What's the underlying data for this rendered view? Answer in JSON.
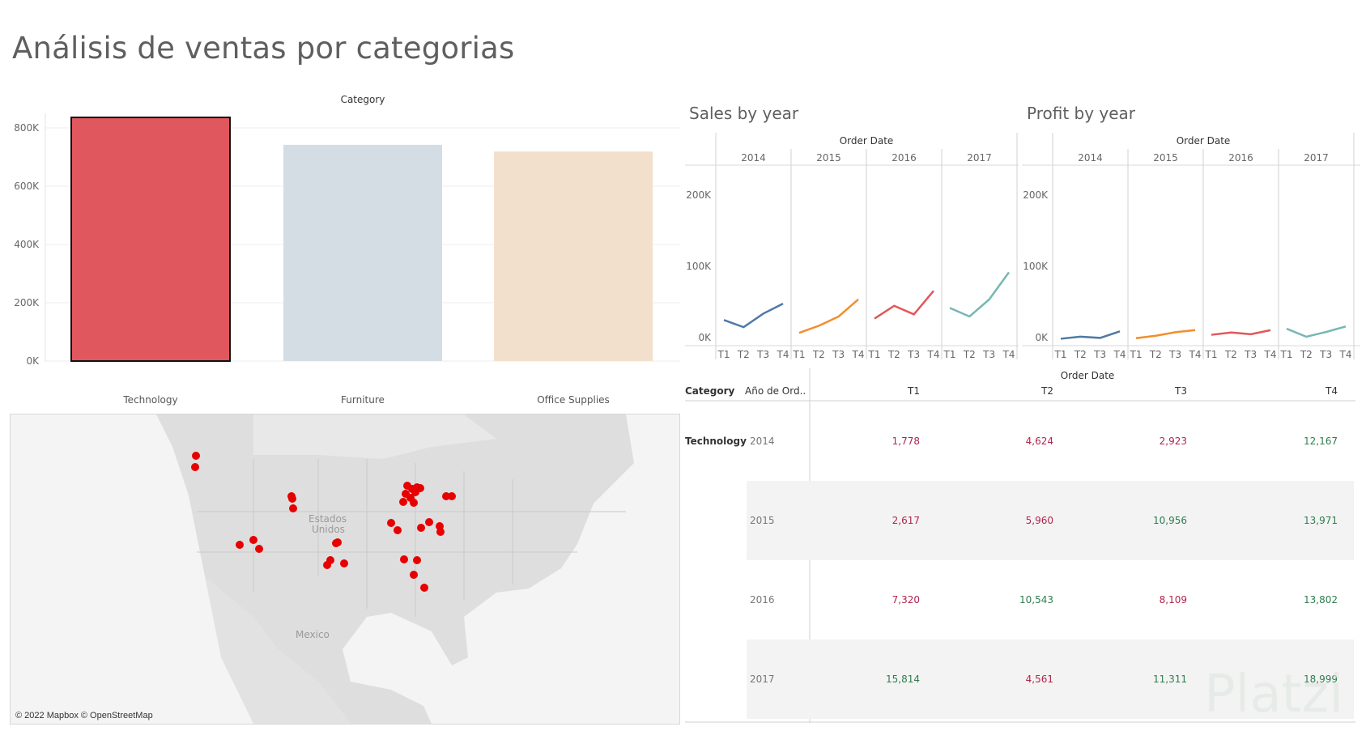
{
  "title": "Análisis de ventas por categorias",
  "colors": {
    "technology": "#e1575e",
    "furniture": "#d5dde4",
    "office": "#f2e0cd",
    "y2014": "#4e79a7",
    "y2015": "#f28e2b",
    "y2016": "#e15759",
    "y2017": "#76b7b2",
    "marker": "#e60000",
    "pos": "#2e7d4f",
    "neg": "#b0254d"
  },
  "chart_data": [
    {
      "type": "bar",
      "title": "Category",
      "categories": [
        "Technology",
        "Furniture",
        "Office Supplies"
      ],
      "values": [
        836000,
        742000,
        719000
      ],
      "ylim": [
        0,
        800000
      ],
      "yticks": [
        "0K",
        "200K",
        "400K",
        "600K",
        "800K"
      ],
      "ytick_values": [
        0,
        200000,
        400000,
        600000,
        800000
      ],
      "grid": true
    },
    {
      "type": "line",
      "title": "Sales by year",
      "xlabel": "Order Date",
      "years": [
        "2014",
        "2015",
        "2016",
        "2017"
      ],
      "quarters": [
        "T1",
        "T2",
        "T3",
        "T4"
      ],
      "ylim": [
        0,
        250000
      ],
      "yticks": [
        "0K",
        "100K",
        "200K"
      ],
      "ytick_values": [
        0,
        100000,
        200000
      ],
      "series": [
        {
          "values": [
            28000,
            18000,
            37000,
            51000
          ]
        },
        {
          "values": [
            10000,
            20000,
            33000,
            57000
          ]
        },
        {
          "values": [
            30000,
            48000,
            36000,
            69000
          ]
        },
        {
          "values": [
            45000,
            33000,
            57000,
            95000
          ]
        }
      ]
    },
    {
      "type": "line",
      "title": "Profit by year",
      "xlabel": "Order Date",
      "years": [
        "2014",
        "2015",
        "2016",
        "2017"
      ],
      "quarters": [
        "T1",
        "T2",
        "T3",
        "T4"
      ],
      "ylim": [
        0,
        250000
      ],
      "yticks": [
        "0K",
        "100K",
        "200K"
      ],
      "ytick_values": [
        0,
        100000,
        200000
      ],
      "series": [
        {
          "values": [
            1778,
            4624,
            2923,
            12167
          ]
        },
        {
          "values": [
            2617,
            5960,
            10956,
            13971
          ]
        },
        {
          "values": [
            7320,
            10543,
            8109,
            13802
          ]
        },
        {
          "values": [
            15814,
            4561,
            11311,
            18999
          ]
        }
      ]
    },
    {
      "type": "table",
      "header_group": "Order Date",
      "columns": [
        "Category",
        "Año de Ord..",
        "T1",
        "T2",
        "T3",
        "T4"
      ],
      "category": "Technology",
      "rows": [
        {
          "year": "2014",
          "cells": [
            {
              "v": "1,778",
              "s": "neg"
            },
            {
              "v": "4,624",
              "s": "neg"
            },
            {
              "v": "2,923",
              "s": "neg"
            },
            {
              "v": "12,167",
              "s": "pos"
            }
          ]
        },
        {
          "year": "2015",
          "cells": [
            {
              "v": "2,617",
              "s": "neg"
            },
            {
              "v": "5,960",
              "s": "neg"
            },
            {
              "v": "10,956",
              "s": "pos"
            },
            {
              "v": "13,971",
              "s": "pos"
            }
          ]
        },
        {
          "year": "2016",
          "cells": [
            {
              "v": "7,320",
              "s": "neg"
            },
            {
              "v": "10,543",
              "s": "pos"
            },
            {
              "v": "8,109",
              "s": "neg"
            },
            {
              "v": "13,802",
              "s": "pos"
            }
          ]
        },
        {
          "year": "2017",
          "cells": [
            {
              "v": "15,814",
              "s": "pos"
            },
            {
              "v": "4,561",
              "s": "neg"
            },
            {
              "v": "11,311",
              "s": "pos"
            },
            {
              "v": "18,999",
              "s": "pos"
            }
          ]
        }
      ]
    }
  ],
  "map": {
    "labels": [
      "Estados",
      "Unidos",
      "Mexico"
    ],
    "credit": "© 2022 Mapbox © OpenStreetMap"
  },
  "watermark": "Platzi"
}
